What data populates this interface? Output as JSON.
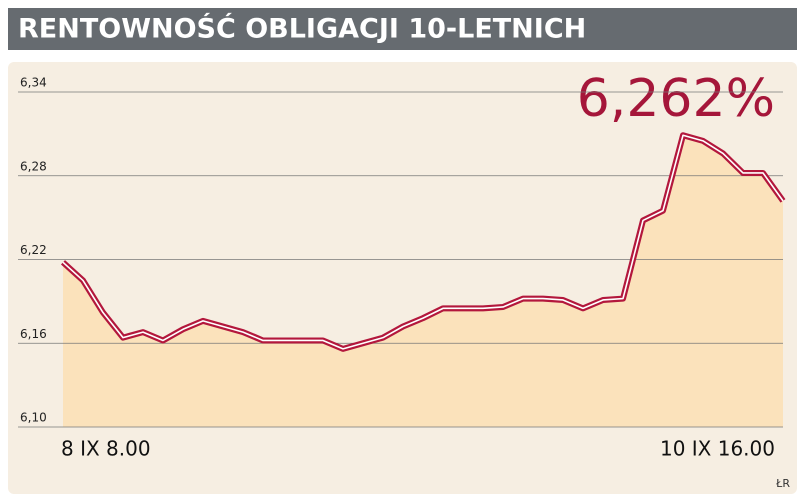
{
  "chart_data": {
    "type": "line",
    "title": "RENTOWNOŚĆ OBLIGACJI 10-LETNICH",
    "annotation": "6,262%",
    "credit": "ŁR",
    "categories": [
      "8 IX 8.00",
      null,
      null,
      null,
      null,
      null,
      null,
      null,
      null,
      null,
      null,
      null,
      null,
      null,
      null,
      null,
      null,
      null,
      null,
      null,
      null,
      null,
      null,
      null,
      null,
      null,
      null,
      null,
      null,
      null,
      null,
      null,
      null,
      null,
      null,
      null,
      "10 IX 16.00"
    ],
    "series": [
      {
        "color": "#b3173c",
        "values": [
          6.218,
          6.205,
          6.182,
          6.164,
          6.168,
          6.162,
          6.17,
          6.176,
          6.172,
          6.168,
          6.162,
          6.162,
          6.162,
          6.162,
          6.156,
          6.16,
          6.164,
          6.172,
          6.178,
          6.185,
          6.185,
          6.185,
          6.186,
          6.192,
          6.192,
          6.191,
          6.185,
          6.191,
          6.192,
          6.248,
          6.255,
          6.309,
          6.305,
          6.296,
          6.282,
          6.282,
          6.262
        ]
      }
    ],
    "ylim": [
      6.1,
      6.34
    ],
    "yticks": [
      {
        "value": 6.1,
        "label": "6,10"
      },
      {
        "value": 6.16,
        "label": "6,16"
      },
      {
        "value": 6.22,
        "label": "6,22"
      },
      {
        "value": 6.28,
        "label": "6,28"
      },
      {
        "value": 6.34,
        "label": "6,34"
      }
    ],
    "grid": true,
    "area_color": "#fbe2bb"
  }
}
